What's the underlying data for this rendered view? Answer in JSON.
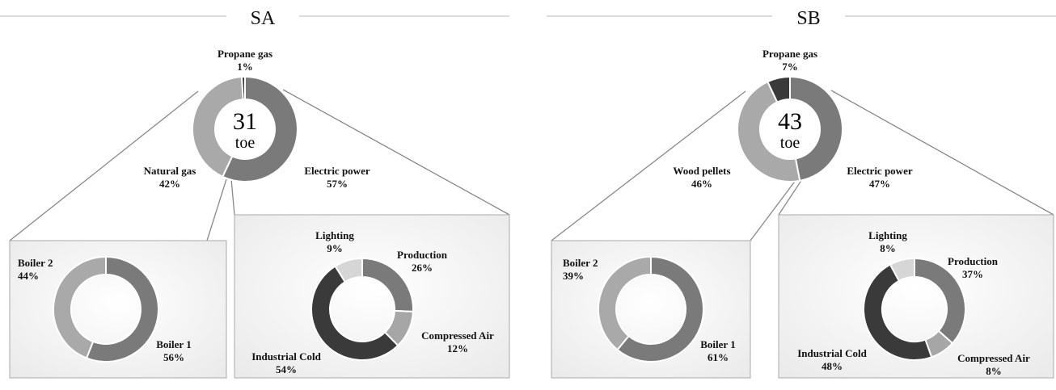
{
  "chart_data": [
    {
      "type": "pie",
      "panel": "SA",
      "title": "SA",
      "center_value": "31",
      "center_unit": "toe",
      "main": {
        "slices": [
          {
            "label": "Electric power",
            "value": 57,
            "display": "57%",
            "color": "#7a7a7a"
          },
          {
            "label": "Natural gas",
            "value": 42,
            "display": "42%",
            "color": "#a9a9a9"
          },
          {
            "label": "Propane gas",
            "value": 1,
            "display": "1%",
            "color": "#3a3a3a"
          }
        ]
      },
      "left_breakdown": {
        "slices": [
          {
            "label": "Boiler 1",
            "value": 56,
            "display": "56%",
            "color": "#7a7a7a"
          },
          {
            "label": "Boiler 2",
            "value": 44,
            "display": "44%",
            "color": "#a9a9a9"
          }
        ]
      },
      "right_breakdown": {
        "slices": [
          {
            "label": "Production",
            "value": 26,
            "display": "26%",
            "color": "#7a7a7a"
          },
          {
            "label": "Compressed Air",
            "value": 12,
            "display": "12%",
            "color": "#a6a6a6"
          },
          {
            "label": "Industrial Cold",
            "value": 54,
            "display": "54%",
            "color": "#3a3a3a"
          },
          {
            "label": "Lighting",
            "value": 9,
            "display": "9%",
            "color": "#d6d6d6"
          }
        ]
      }
    },
    {
      "type": "pie",
      "panel": "SB",
      "title": "SB",
      "center_value": "43",
      "center_unit": "toe",
      "main": {
        "slices": [
          {
            "label": "Electric power",
            "value": 47,
            "display": "47%",
            "color": "#7a7a7a"
          },
          {
            "label": "Wood pellets",
            "value": 46,
            "display": "46%",
            "color": "#a9a9a9"
          },
          {
            "label": "Propane gas",
            "value": 7,
            "display": "7%",
            "color": "#3a3a3a"
          }
        ]
      },
      "left_breakdown": {
        "slices": [
          {
            "label": "Boiler 1",
            "value": 61,
            "display": "61%",
            "color": "#7a7a7a"
          },
          {
            "label": "Boiler 2",
            "value": 39,
            "display": "39%",
            "color": "#a9a9a9"
          }
        ]
      },
      "right_breakdown": {
        "slices": [
          {
            "label": "Production",
            "value": 37,
            "display": "37%",
            "color": "#7a7a7a"
          },
          {
            "label": "Compressed Air",
            "value": 8,
            "display": "8%",
            "color": "#a6a6a6"
          },
          {
            "label": "Industrial Cold",
            "value": 48,
            "display": "48%",
            "color": "#3a3a3a"
          },
          {
            "label": "Lighting",
            "value": 8,
            "display": "8%",
            "color": "#d6d6d6"
          }
        ]
      }
    }
  ]
}
